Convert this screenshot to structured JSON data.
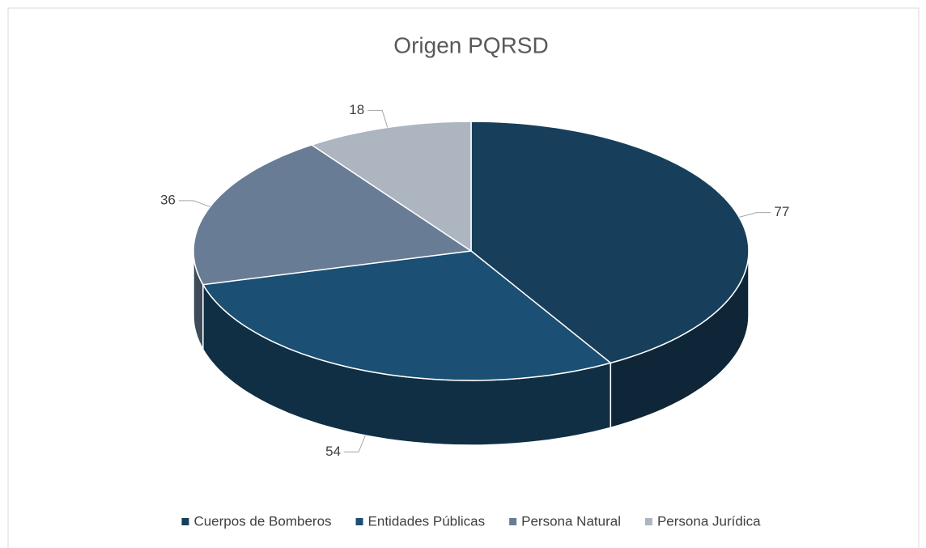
{
  "chart_data": {
    "type": "pie",
    "title": "Origen PQRSD",
    "categories": [
      "Cuerpos de Bomberos",
      "Entidades Públicas",
      "Persona Natural",
      "Persona Jurídica"
    ],
    "values": [
      77,
      54,
      36,
      18
    ],
    "colors": [
      "#173f5b",
      "#1b4f73",
      "#687d95",
      "#acb5c0"
    ],
    "legend": "bottom"
  }
}
